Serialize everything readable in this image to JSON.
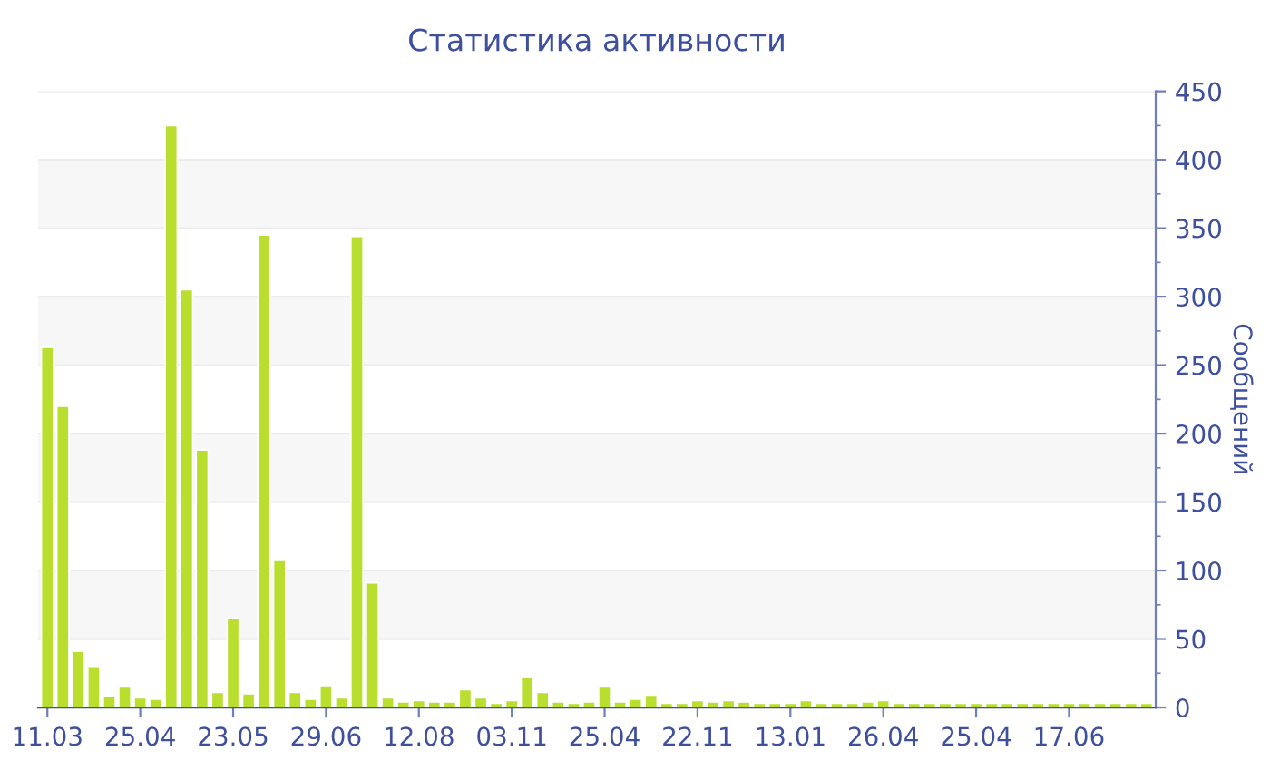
{
  "chart_data": {
    "type": "bar",
    "title": "Статистика активности",
    "ylabel": "Сообщений",
    "categories": [
      "11.03",
      null,
      null,
      null,
      null,
      null,
      "25.04",
      null,
      null,
      null,
      null,
      null,
      "23.05",
      null,
      null,
      null,
      null,
      null,
      "29.06",
      null,
      null,
      null,
      null,
      null,
      "12.08",
      null,
      null,
      null,
      null,
      null,
      "03.11",
      null,
      null,
      null,
      null,
      null,
      "25.04",
      null,
      null,
      null,
      null,
      null,
      "22.11",
      null,
      null,
      null,
      null,
      null,
      "13.01",
      null,
      null,
      null,
      null,
      null,
      "26.04",
      null,
      null,
      null,
      null,
      null,
      "25.04",
      null,
      null,
      null,
      null,
      null,
      "17.06",
      null,
      null,
      null,
      null,
      null
    ],
    "values": [
      263,
      220,
      41,
      30,
      8,
      15,
      7,
      6,
      425,
      305,
      188,
      11,
      65,
      10,
      345,
      108,
      11,
      6,
      16,
      7,
      344,
      91,
      7,
      4,
      5,
      4,
      4,
      13,
      7,
      3,
      5,
      22,
      11,
      4,
      3,
      4,
      15,
      4,
      6,
      9,
      3,
      3,
      5,
      4,
      5,
      4,
      3,
      3,
      3,
      5,
      3,
      3,
      3,
      4,
      5,
      3,
      3,
      3,
      3,
      3,
      3,
      3,
      3,
      3,
      3,
      3,
      3,
      3,
      3,
      3,
      3,
      3
    ],
    "color": "#bade2e",
    "ylim": [
      0,
      450
    ],
    "yticks": [
      0,
      50,
      100,
      150,
      200,
      250,
      300,
      350,
      400,
      450
    ],
    "grid": "y",
    "bands": [
      {
        "axis": "y",
        "from": 50,
        "to": 100,
        "color": "#f7f7f7"
      },
      {
        "axis": "y",
        "from": 150,
        "to": 200,
        "color": "#f7f7f7"
      },
      {
        "axis": "y",
        "from": 250,
        "to": 300,
        "color": "#f7f7f7"
      },
      {
        "axis": "y",
        "from": 350,
        "to": 400,
        "color": "#f7f7f7"
      }
    ]
  }
}
